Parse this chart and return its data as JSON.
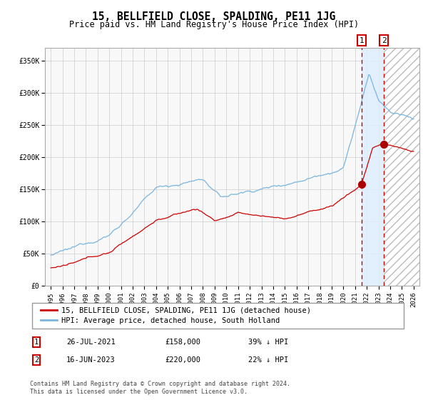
{
  "title": "15, BELLFIELD CLOSE, SPALDING, PE11 1JG",
  "subtitle": "Price paid vs. HM Land Registry's House Price Index (HPI)",
  "legend_line1": "15, BELLFIELD CLOSE, SPALDING, PE11 1JG (detached house)",
  "legend_line2": "HPI: Average price, detached house, South Holland",
  "annotation1_label": "1",
  "annotation1_date": "26-JUL-2021",
  "annotation1_price": "£158,000",
  "annotation1_hpi": "39% ↓ HPI",
  "annotation1_year": 2021.57,
  "annotation1_value": 158000,
  "annotation2_label": "2",
  "annotation2_date": "16-JUN-2023",
  "annotation2_price": "£220,000",
  "annotation2_hpi": "22% ↓ HPI",
  "annotation2_year": 2023.46,
  "annotation2_value": 220000,
  "hpi_color": "#7ab5e0",
  "price_color": "#cc0000",
  "dot_color": "#aa0000",
  "vline_color": "#cc0000",
  "shade_color": "#ddeeff",
  "grid_color": "#cccccc",
  "bg_color": "#f8f8f8",
  "hatch_color": "#bbbbbb",
  "ylim": [
    0,
    370000
  ],
  "yticks": [
    0,
    50000,
    100000,
    150000,
    200000,
    250000,
    300000,
    350000
  ],
  "ytick_labels": [
    "£0",
    "£50K",
    "£100K",
    "£150K",
    "£200K",
    "£250K",
    "£300K",
    "£350K"
  ],
  "xmin": 1994.5,
  "xmax": 2026.5,
  "footer": "Contains HM Land Registry data © Crown copyright and database right 2024.\nThis data is licensed under the Open Government Licence v3.0.",
  "title_fontsize": 10.5,
  "subtitle_fontsize": 8.5,
  "tick_fontsize": 7,
  "legend_fontsize": 7.5,
  "footer_fontsize": 6.0
}
